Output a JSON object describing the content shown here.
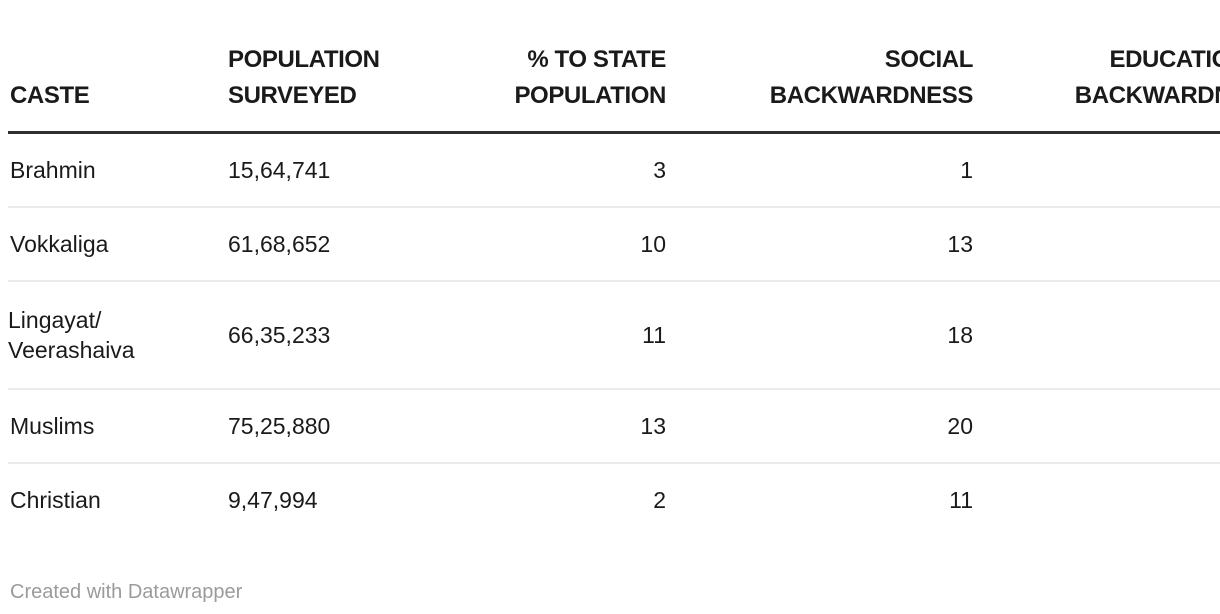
{
  "chart_data": {
    "type": "table",
    "columns": [
      {
        "label": "CASTE",
        "align": "left"
      },
      {
        "label": "POPULATION\nSURVEYED",
        "align": "left"
      },
      {
        "label": "% TO STATE\nPOPULATION",
        "align": "right"
      },
      {
        "label": "SOCIAL\nBACKWARDNESS",
        "align": "right"
      },
      {
        "label": "EDUCATIONAL\nBACKWARDNESS",
        "align": "right",
        "note": "clipped at right edge of viewport"
      }
    ],
    "rows": [
      {
        "caste": "Brahmin",
        "population_surveyed": "15,64,741",
        "pct_to_state_population": "3",
        "social_backwardness": "1"
      },
      {
        "caste": "Vokkaliga",
        "population_surveyed": "61,68,652",
        "pct_to_state_population": "10",
        "social_backwardness": "13"
      },
      {
        "caste": "Lingayat/\nVeerashaiva",
        "population_surveyed": "66,35,233",
        "pct_to_state_population": "11",
        "social_backwardness": "18"
      },
      {
        "caste": "Muslims",
        "population_surveyed": "75,25,880",
        "pct_to_state_population": "13",
        "social_backwardness": "20"
      },
      {
        "caste": "Christian",
        "population_surveyed": "9,47,994",
        "pct_to_state_population": "2",
        "social_backwardness": "11"
      }
    ]
  },
  "footer": {
    "credit": "Created with Datawrapper"
  },
  "colors": {
    "text": "#1a1a1a",
    "header_rule": "#2e2e2e",
    "row_divider": "#ebebeb",
    "credit_text": "#9b9b9b",
    "background": "#ffffff"
  }
}
